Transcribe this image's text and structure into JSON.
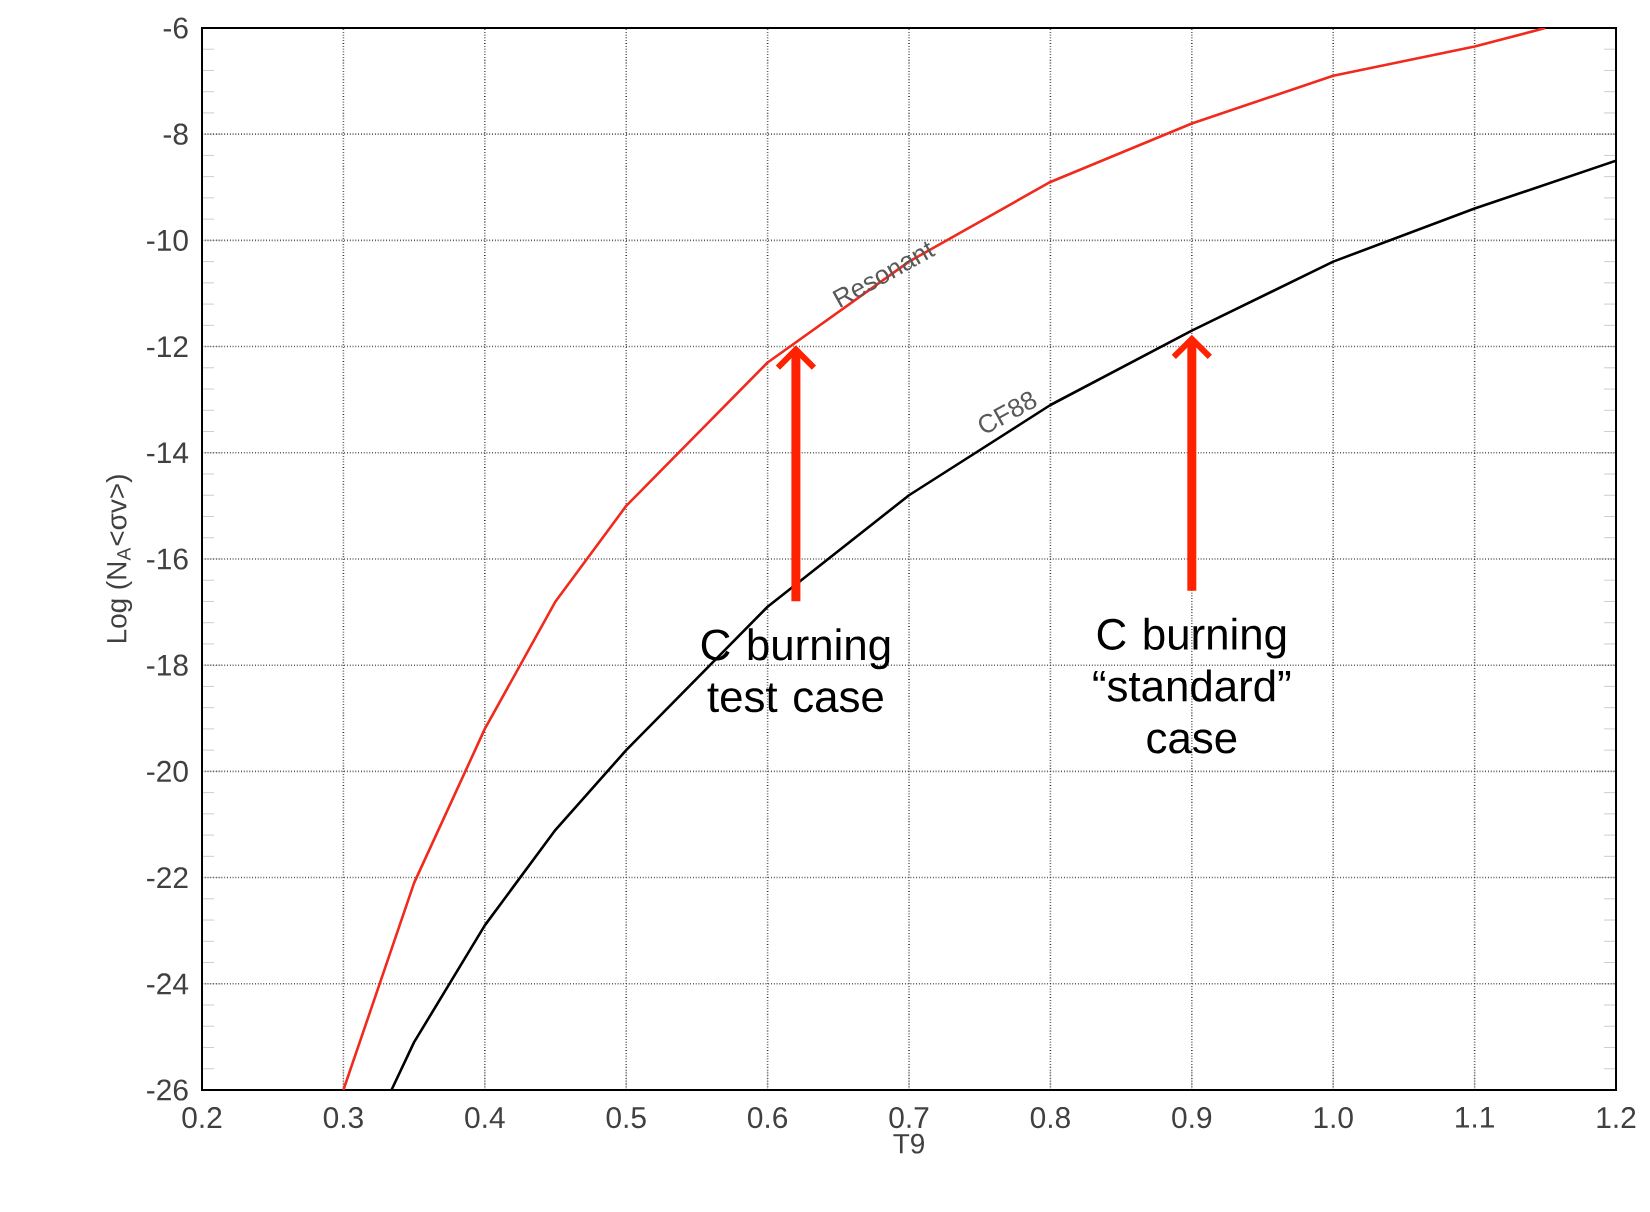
{
  "chart_data": {
    "type": "line",
    "xlabel": "T9",
    "ylabel": "Log (N$_{A}$<σv>)",
    "xlim": [
      0.2,
      1.2
    ],
    "ylim": [
      -26,
      -6
    ],
    "xticks": [
      0.2,
      0.3,
      0.4,
      0.5,
      0.6,
      0.7,
      0.8,
      0.9,
      {
        "value": 1.0,
        "label": "1.0"
      },
      1.1,
      1.2
    ],
    "yticks": [
      -26,
      -24,
      -22,
      -20,
      -18,
      -16,
      -14,
      -12,
      -10,
      -8,
      -6
    ],
    "grid": true,
    "line_style": "solid",
    "marker": "none",
    "series": [
      {
        "color": "#f02a1c",
        "x": [
          0.3,
          0.35,
          0.4,
          0.45,
          0.5,
          0.6,
          0.7,
          0.8,
          0.9,
          1.0,
          1.1,
          1.15
        ],
        "values": [
          -26,
          -22.1,
          -19.2,
          -16.8,
          -15.0,
          -12.3,
          -10.4,
          -8.9,
          -7.8,
          -6.9,
          -6.35,
          -6
        ]
      },
      {
        "color": "#000000",
        "x": [
          0.334,
          0.35,
          0.4,
          0.45,
          0.5,
          0.6,
          0.7,
          0.8,
          0.9,
          1.0,
          1.1,
          1.2
        ],
        "values": [
          -26,
          -25.1,
          -22.9,
          -21.1,
          -19.6,
          -16.9,
          -14.8,
          -13.1,
          -11.7,
          -10.4,
          -9.4,
          -8.5
        ]
      }
    ],
    "annotations": [
      {
        "text": "Resonant",
        "x": 0.65,
        "y": -11.35
      },
      {
        "text": "CF88",
        "x": 0.75,
        "y": -13.95
      },
      {
        "text": "C burning test case",
        "x": 0.62,
        "y": -11.9
      },
      {
        "text": "C burning “standard” case",
        "x": 0.9,
        "y": -11.7
      }
    ]
  }
}
